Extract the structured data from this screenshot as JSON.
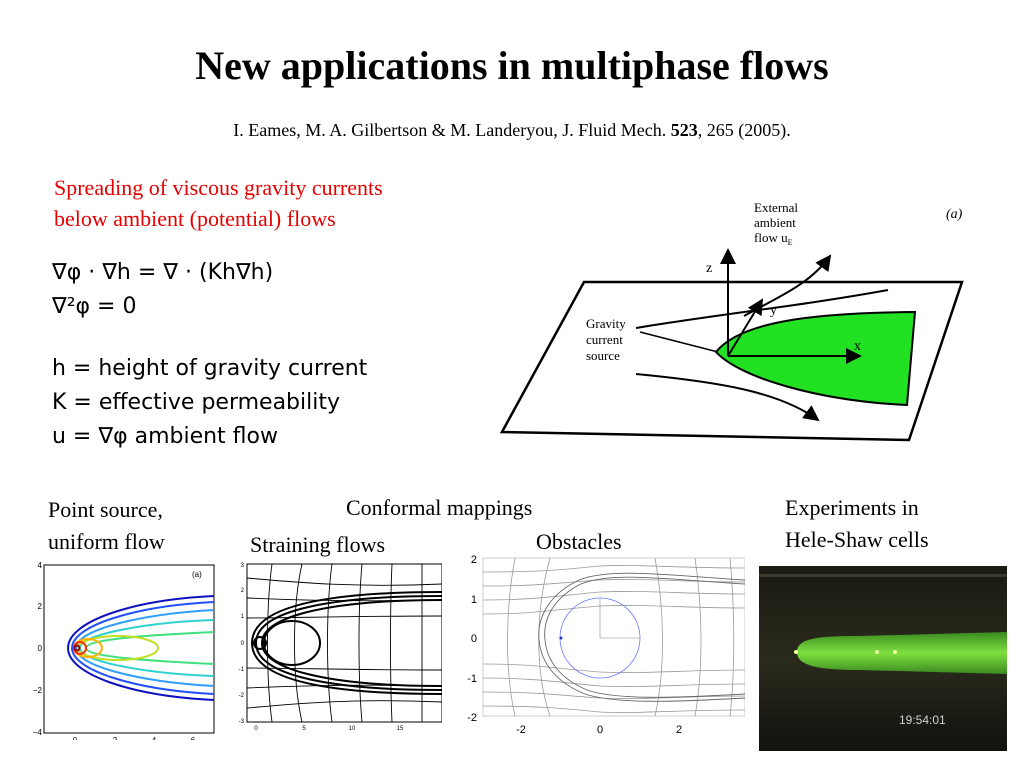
{
  "slide": {
    "title": "New applications in multiphase flows",
    "citation": {
      "authors": "I. Eames, M. A. Gilbertson & M. Landeryou, J. Fluid Mech.",
      "volume": "523",
      "rest": ", 265 (2005)."
    },
    "spreading": {
      "line1": "Spreading of viscous gravity currents",
      "line2": "below ambient (potential) flows"
    },
    "equations": {
      "eq1_lhs": "∇φ · ∇h = ∇ · (Kh∇h)",
      "eq2": "∇²φ = 0",
      "def_h": "h = height of gravity current",
      "def_K": "K = effective permeability",
      "def_u": "u = ∇φ ambient flow"
    },
    "schematic": {
      "panel_label": "(a)",
      "external_label": [
        "External",
        "ambient",
        "flow u"
      ],
      "external_sub": "E",
      "source_label": [
        "Gravity",
        "current",
        "source"
      ],
      "axis_z": "z",
      "axis_y": "y",
      "axis_x": "x"
    },
    "captions": {
      "point_source": [
        "Point source,",
        "uniform flow"
      ],
      "conformal": "Conformal mappings",
      "straining": "Straining flows",
      "obstacles": "Obstacles",
      "experiments": [
        "Experiments in",
        "Hele-Shaw cells"
      ]
    },
    "plot_point_source": {
      "panel_label": "(a)",
      "yticks": [
        "4",
        "2",
        "0",
        "−2",
        "−4"
      ],
      "xticks": [
        "0",
        "2",
        "4",
        "6"
      ]
    },
    "plot_straining": {
      "yticks": [
        "3",
        "2",
        "1",
        "0",
        "-1",
        "-2",
        "-3"
      ],
      "xticks": [
        "0",
        "5",
        "10",
        "15"
      ]
    },
    "plot_obstacles": {
      "yticks": [
        "2",
        "1",
        "0",
        "-1",
        "-2"
      ],
      "xticks": [
        "-2",
        "0",
        "2"
      ]
    },
    "photo": {
      "timestamp": "19:54:01"
    }
  },
  "colors": {
    "title": "#000000",
    "accent_red": "#e60000",
    "current_green": "#22e022",
    "experiment_green": "#6fd23a"
  }
}
